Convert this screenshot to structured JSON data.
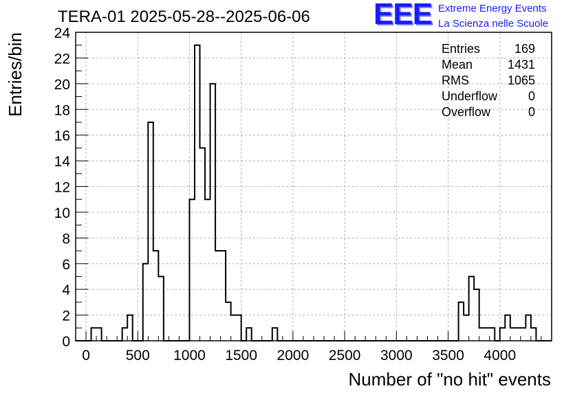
{
  "chart_data": {
    "type": "histogram",
    "title": "TERA-01 2025-05-28--2025-06-06",
    "xlabel": "Number of \"no hit\" events",
    "ylabel": "Entries/bin",
    "xlim": [
      -100,
      4500
    ],
    "ylim": [
      0,
      24
    ],
    "bin_width": 50,
    "x_ticks": [
      0,
      500,
      1000,
      1500,
      2000,
      2500,
      3000,
      3500,
      4000
    ],
    "y_ticks": [
      0,
      2,
      4,
      6,
      8,
      10,
      12,
      14,
      16,
      18,
      20,
      22,
      24
    ],
    "grid": true,
    "bins": [
      {
        "x": 50,
        "count": 1
      },
      {
        "x": 100,
        "count": 1
      },
      {
        "x": 350,
        "count": 1
      },
      {
        "x": 400,
        "count": 2
      },
      {
        "x": 550,
        "count": 6
      },
      {
        "x": 600,
        "count": 17
      },
      {
        "x": 650,
        "count": 7
      },
      {
        "x": 700,
        "count": 5
      },
      {
        "x": 1000,
        "count": 11
      },
      {
        "x": 1050,
        "count": 23
      },
      {
        "x": 1100,
        "count": 15
      },
      {
        "x": 1150,
        "count": 11
      },
      {
        "x": 1200,
        "count": 20
      },
      {
        "x": 1250,
        "count": 7
      },
      {
        "x": 1300,
        "count": 7
      },
      {
        "x": 1350,
        "count": 3
      },
      {
        "x": 1400,
        "count": 2
      },
      {
        "x": 1450,
        "count": 2
      },
      {
        "x": 1550,
        "count": 1
      },
      {
        "x": 1800,
        "count": 1
      },
      {
        "x": 3600,
        "count": 3
      },
      {
        "x": 3650,
        "count": 2
      },
      {
        "x": 3700,
        "count": 5
      },
      {
        "x": 3750,
        "count": 4
      },
      {
        "x": 3800,
        "count": 1
      },
      {
        "x": 3850,
        "count": 1
      },
      {
        "x": 3900,
        "count": 1
      },
      {
        "x": 4000,
        "count": 1
      },
      {
        "x": 4050,
        "count": 2
      },
      {
        "x": 4100,
        "count": 1
      },
      {
        "x": 4150,
        "count": 1
      },
      {
        "x": 4200,
        "count": 1
      },
      {
        "x": 4250,
        "count": 2
      },
      {
        "x": 4300,
        "count": 1
      }
    ],
    "stats": [
      {
        "label": "Entries",
        "value": "169"
      },
      {
        "label": "Mean",
        "value": "1431"
      },
      {
        "label": "RMS",
        "value": "1065"
      },
      {
        "label": "Underflow",
        "value": "0"
      },
      {
        "label": "Overflow",
        "value": "0"
      }
    ],
    "stats_placement": "top-right"
  },
  "logo": {
    "mark": "EEE",
    "line1": "Extreme Energy Events",
    "line2": "La Scienza nelle Scuole",
    "color": "#1a1aff"
  }
}
